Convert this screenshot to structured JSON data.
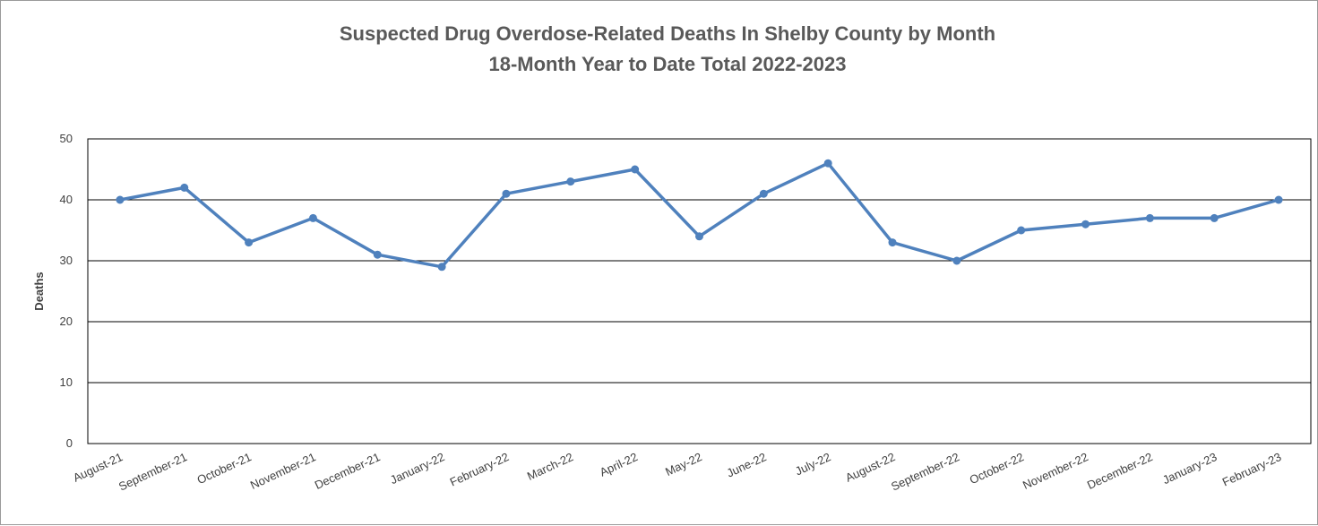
{
  "chart_data": {
    "type": "line",
    "title": "Suspected Drug Overdose-Related Deaths In Shelby County by Month",
    "subtitle": "18-Month Year to Date Total 2022-2023",
    "xlabel": "",
    "ylabel": "Deaths",
    "ylim": [
      0,
      50
    ],
    "yticks": [
      0,
      10,
      20,
      30,
      40,
      50
    ],
    "grid": true,
    "legend": "none",
    "categories": [
      "August-21",
      "September-21",
      "October-21",
      "November-21",
      "December-21",
      "January-22",
      "February-22",
      "March-22",
      "April-22",
      "May-22",
      "June-22",
      "July-22",
      "August-22",
      "September-22",
      "October-22",
      "November-22",
      "December-22",
      "January-23",
      "February-23"
    ],
    "series": [
      {
        "values": [
          40,
          42,
          33,
          37,
          31,
          29,
          41,
          43,
          45,
          34,
          41,
          46,
          33,
          30,
          35,
          36,
          37,
          37,
          40
        ],
        "color": "#4f81bd"
      }
    ]
  }
}
